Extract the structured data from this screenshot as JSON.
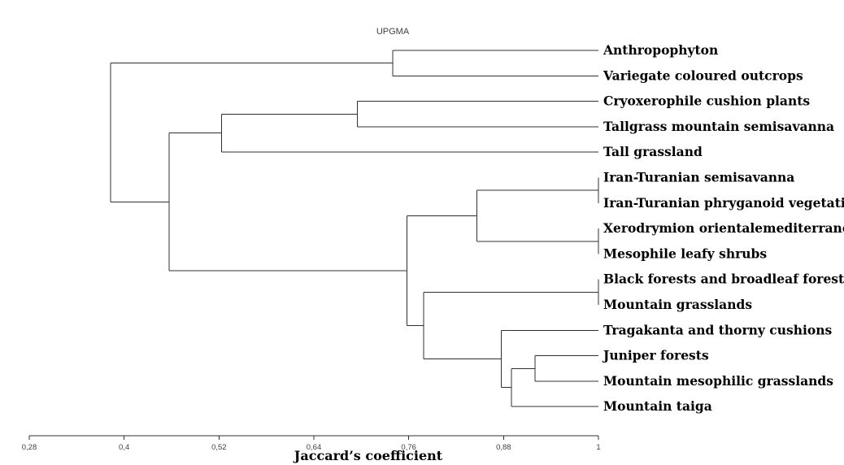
{
  "chart_data": {
    "type": "dendrogram",
    "title": "UPGMA",
    "xlabel": "Jaccard’s coefficient",
    "xlim": [
      0.28,
      1
    ],
    "ticks": [
      "0,28",
      "0,4",
      "0,52",
      "0,64",
      "0,76",
      "0,88",
      "1"
    ],
    "tick_values": [
      0.28,
      0.4,
      0.52,
      0.64,
      0.76,
      0.88,
      1
    ],
    "leaves": [
      "Anthropophyton",
      "Variegate coloured outcrops",
      "Cryoxerophile cushion plants",
      "Tallgrass mountain semisavanna",
      "Tall grassland",
      "Iran-Turanian semisavanna",
      "Iran-Turanian phryganoid vegetation",
      "Xerodrymion orientalemediterraneum",
      "Mesophile leafy shrubs",
      "Black forests and broadleaf forests",
      "Mountain grasslands",
      "Tragakanta and thorny cushions",
      "Juniper forests",
      "Mountain mesophilic grasslands",
      "Mountain taiga"
    ],
    "merges": [
      {
        "id": "A",
        "children": [
          "Anthropophyton",
          "Variegate coloured outcrops"
        ],
        "similarity": 0.74
      },
      {
        "id": "B",
        "children": [
          "Cryoxerophile cushion plants",
          "Tallgrass mountain semisavanna"
        ],
        "similarity": 0.695
      },
      {
        "id": "C",
        "children": [
          "B",
          "Tall grassland"
        ],
        "similarity": 0.523
      },
      {
        "id": "D",
        "children": [
          "Iran-Turanian semisavanna",
          "Iran-Turanian phryganoid vegetation"
        ],
        "similarity": 1
      },
      {
        "id": "E",
        "children": [
          "Xerodrymion orientalemediterraneum",
          "Mesophile leafy shrubs"
        ],
        "similarity": 1
      },
      {
        "id": "F",
        "children": [
          "D",
          "E"
        ],
        "similarity": 0.846
      },
      {
        "id": "G",
        "children": [
          "Black forests and broadleaf forests",
          "Mountain grasslands"
        ],
        "similarity": 1
      },
      {
        "id": "H",
        "children": [
          "Juniper forests",
          "Mountain mesophilic grasslands"
        ],
        "similarity": 0.92
      },
      {
        "id": "I",
        "children": [
          "H",
          "Mountain taiga"
        ],
        "similarity": 0.89
      },
      {
        "id": "J",
        "children": [
          "Tragakanta and thorny cushions",
          "I"
        ],
        "similarity": 0.877
      },
      {
        "id": "K",
        "children": [
          "G",
          "J"
        ],
        "similarity": 0.779
      },
      {
        "id": "L",
        "children": [
          "F",
          "K"
        ],
        "similarity": 0.758
      },
      {
        "id": "M",
        "children": [
          "C",
          "L"
        ],
        "similarity": 0.457
      },
      {
        "id": "N",
        "children": [
          "A",
          "M"
        ],
        "similarity": 0.383
      }
    ]
  }
}
